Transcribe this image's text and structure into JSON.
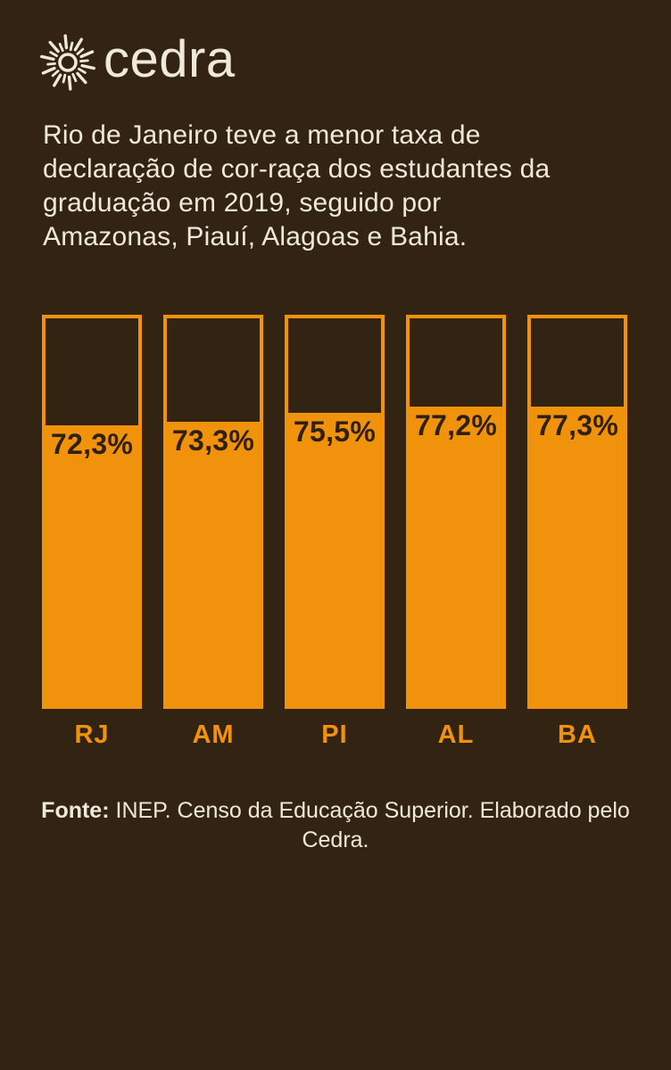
{
  "brand": {
    "name": "cedra",
    "icon": "sunburst-icon"
  },
  "title_lines": [
    "Rio de Janeiro teve a menor taxa de",
    "declaração de cor-raça dos estudantes da",
    "graduação em 2019, seguido por",
    "Amazonas, Piauí, Alagoas e Bahia."
  ],
  "chart_data": {
    "type": "bar",
    "title": "Rio de Janeiro teve a menor taxa de declaração de cor-raça dos estudantes da graduação em 2019, seguido por Amazonas, Piauí, Alagoas e Bahia.",
    "categories": [
      "RJ",
      "AM",
      "PI",
      "AL",
      "BA"
    ],
    "values": [
      72.3,
      73.3,
      75.5,
      77.2,
      77.3
    ],
    "value_labels": [
      "72,3%",
      "73,3%",
      "75,5%",
      "77,2%",
      "77,3%"
    ],
    "ylim": [
      0,
      100
    ],
    "orientation": "vertical",
    "legend": "none",
    "grid": "off"
  },
  "source": {
    "prefix": "Fonte:",
    "rest": " INEP. Censo da Educação Superior. Elaborado pelo Cedra.",
    "line2": "pelo Cedra."
  },
  "colors": {
    "background": "#332312",
    "accent_orange": "#F0920B",
    "cream_text": "#EFE9DB",
    "value_label": "#30210F"
  }
}
